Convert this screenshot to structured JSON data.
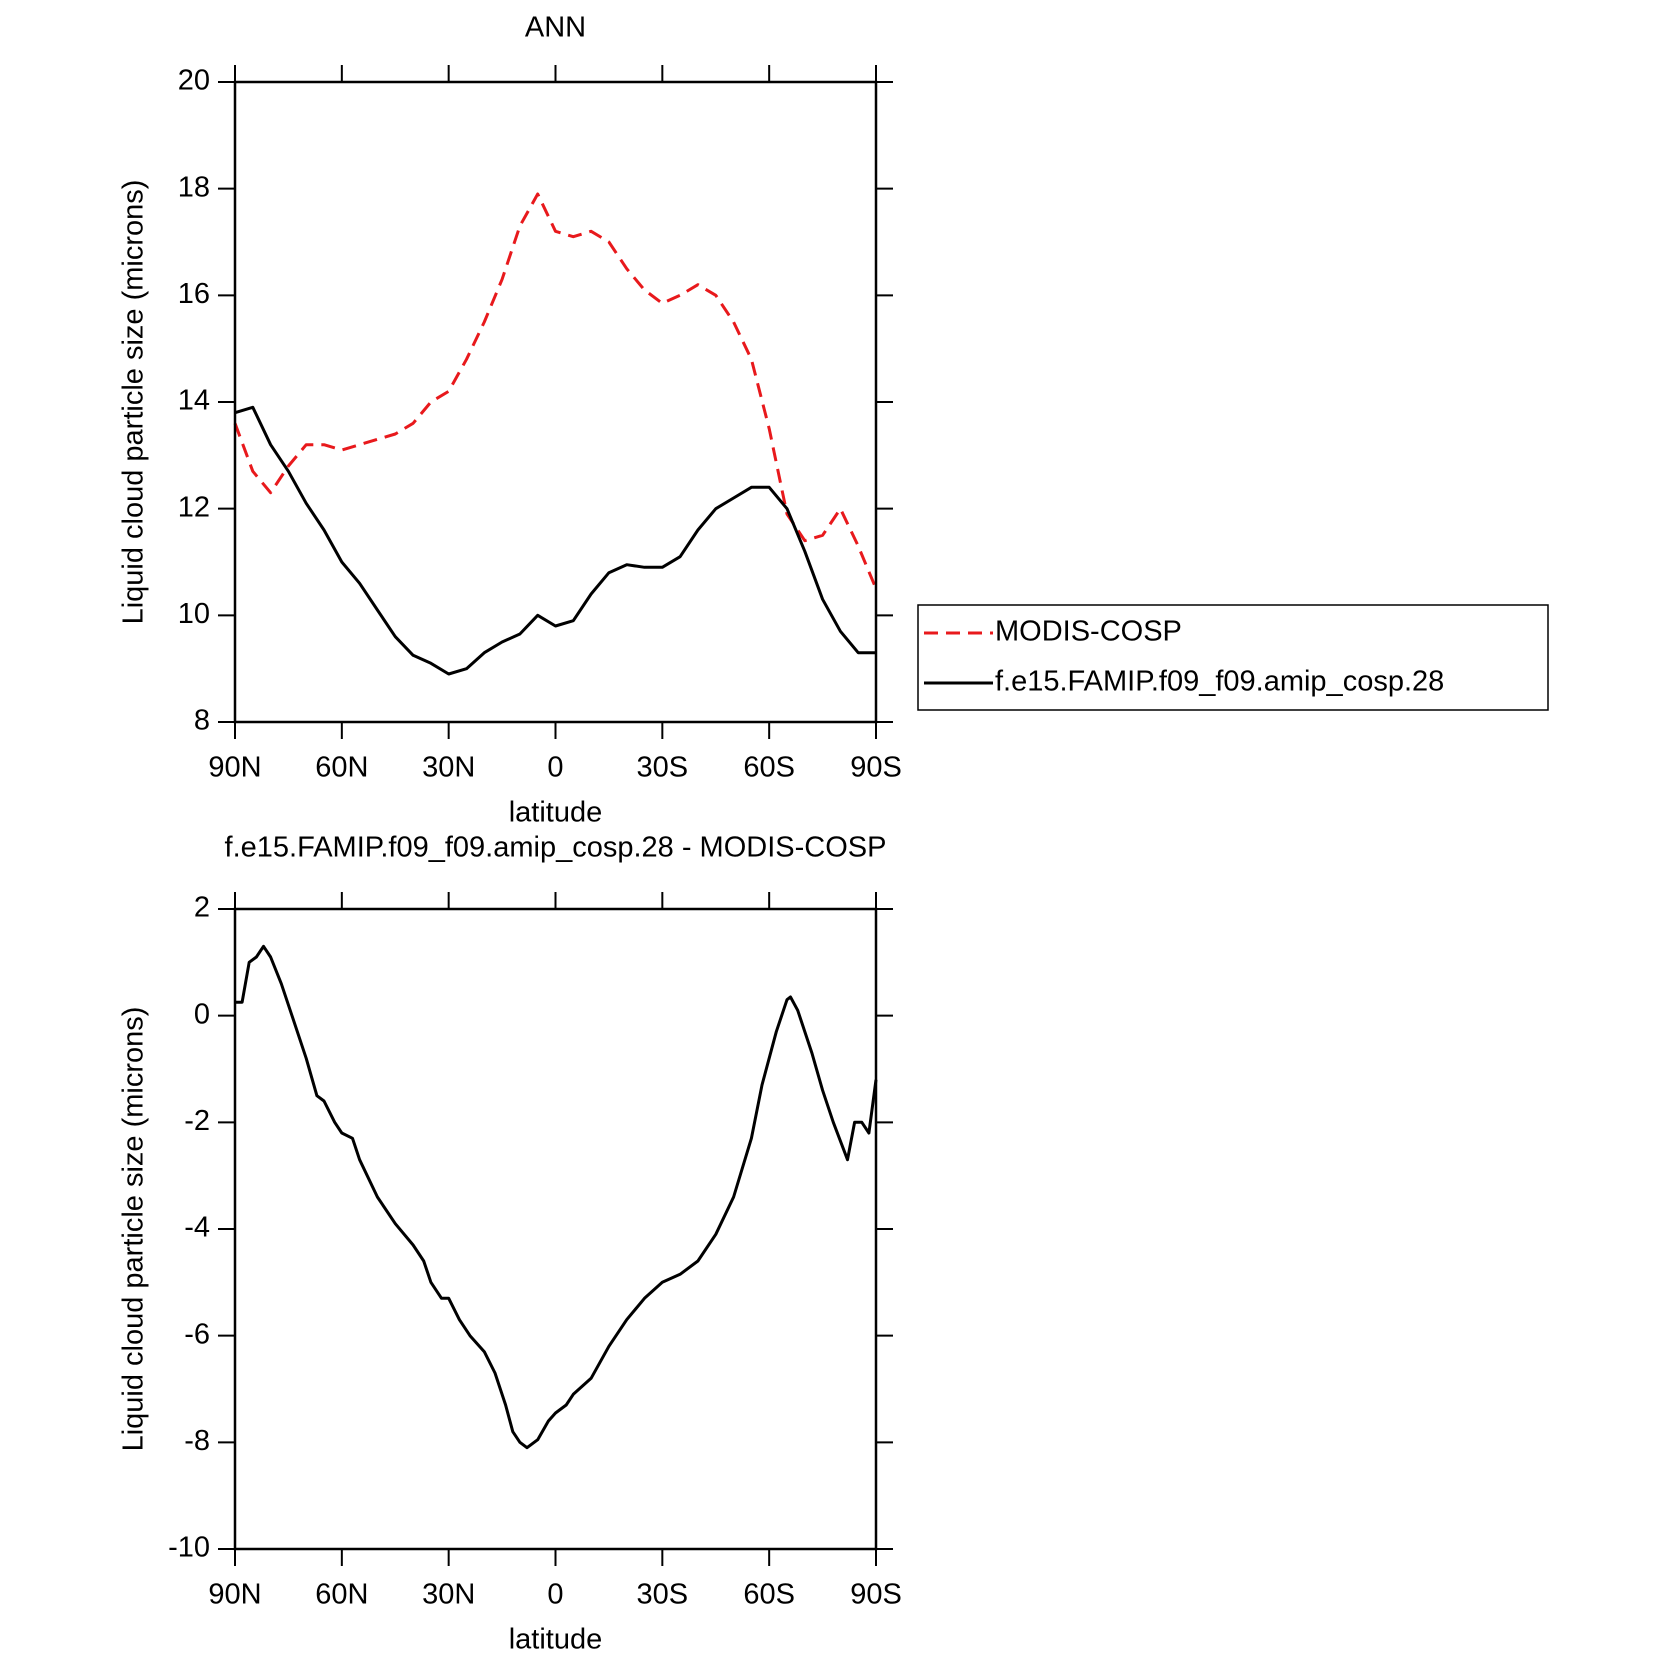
{
  "chart_data": [
    {
      "type": "line",
      "title": "ANN",
      "xlabel": "latitude",
      "ylabel": "Liquid cloud particle size (microns)",
      "x": [
        90,
        85,
        80,
        75,
        70,
        65,
        60,
        55,
        50,
        45,
        40,
        35,
        30,
        25,
        20,
        15,
        10,
        5,
        0,
        -5,
        -10,
        -15,
        -20,
        -25,
        -30,
        -35,
        -40,
        -45,
        -50,
        -55,
        -60,
        -65,
        -70,
        -75,
        -80,
        -85,
        -90
      ],
      "xlim": [
        90,
        -90
      ],
      "xticks": [
        {
          "value": 90,
          "label": "90N"
        },
        {
          "value": 60,
          "label": "60N"
        },
        {
          "value": 30,
          "label": "30N"
        },
        0,
        {
          "value": -30,
          "label": "30S"
        },
        {
          "value": -60,
          "label": "60S"
        },
        {
          "value": -90,
          "label": "90S"
        }
      ],
      "ylim": [
        8,
        20
      ],
      "yticks": [
        8,
        10,
        12,
        14,
        16,
        18,
        20
      ],
      "legend": "right",
      "series": [
        {
          "name": "MODIS-COSP",
          "color": "#e8191c",
          "dashed": true,
          "values": [
            13.6,
            12.7,
            12.3,
            12.8,
            13.2,
            13.2,
            13.1,
            13.2,
            13.3,
            13.4,
            13.6,
            14.0,
            14.2,
            14.8,
            15.5,
            16.3,
            17.3,
            17.9,
            17.2,
            17.1,
            17.2,
            17.0,
            16.5,
            16.1,
            15.85,
            16.0,
            16.2,
            16.0,
            15.5,
            14.8,
            13.5,
            11.9,
            11.4,
            11.5,
            12.0,
            11.3,
            10.5
          ]
        },
        {
          "name": "f.e15.FAMIP.f09_f09.amip_cosp.28",
          "color": "#000000",
          "dashed": false,
          "values": [
            13.8,
            13.9,
            13.2,
            12.7,
            12.1,
            11.6,
            11.0,
            10.6,
            10.1,
            9.6,
            9.25,
            9.1,
            8.9,
            9.0,
            9.3,
            9.5,
            9.65,
            10.0,
            9.8,
            9.9,
            10.4,
            10.8,
            10.95,
            10.9,
            10.9,
            11.1,
            11.6,
            12.0,
            12.2,
            12.4,
            12.4,
            12.0,
            11.2,
            10.3,
            9.7,
            9.3,
            9.3
          ]
        }
      ]
    },
    {
      "type": "line",
      "title": "f.e15.FAMIP.f09_f09.amip_cosp.28 - MODIS-COSP",
      "xlabel": "latitude",
      "ylabel": "Liquid cloud particle size (microns)",
      "x": [
        90,
        88,
        86,
        84,
        82,
        80,
        77,
        74,
        70,
        67,
        65,
        62,
        60,
        57,
        55,
        50,
        45,
        40,
        37,
        35,
        32,
        30,
        27,
        24,
        20,
        17,
        14,
        12,
        10,
        8,
        5,
        2,
        0,
        -3,
        -5,
        -10,
        -15,
        -20,
        -25,
        -30,
        -35,
        -40,
        -45,
        -50,
        -55,
        -58,
        -62,
        -65,
        -66,
        -68,
        -72,
        -75,
        -78,
        -82,
        -84,
        -86,
        -88,
        -90
      ],
      "xlim": [
        90,
        -90
      ],
      "xticks": [
        {
          "value": 90,
          "label": "90N"
        },
        {
          "value": 60,
          "label": "60N"
        },
        {
          "value": 30,
          "label": "30N"
        },
        0,
        {
          "value": -30,
          "label": "30S"
        },
        {
          "value": -60,
          "label": "60S"
        },
        {
          "value": -90,
          "label": "90S"
        }
      ],
      "ylim": [
        -10,
        2
      ],
      "yticks": [
        -10,
        -8,
        -6,
        -4,
        -2,
        0,
        2
      ],
      "series": [
        {
          "color": "#000000",
          "dashed": false,
          "values": [
            0.25,
            0.25,
            1.0,
            1.1,
            1.3,
            1.1,
            0.6,
            0.0,
            -0.8,
            -1.5,
            -1.6,
            -2.0,
            -2.2,
            -2.3,
            -2.7,
            -3.4,
            -3.9,
            -4.3,
            -4.6,
            -5.0,
            -5.3,
            -5.3,
            -5.7,
            -6.0,
            -6.3,
            -6.7,
            -7.3,
            -7.8,
            -8.0,
            -8.1,
            -7.95,
            -7.6,
            -7.45,
            -7.3,
            -7.1,
            -6.8,
            -6.2,
            -5.7,
            -5.3,
            -5.0,
            -4.85,
            -4.6,
            -4.1,
            -3.4,
            -2.3,
            -1.3,
            -0.3,
            0.3,
            0.35,
            0.1,
            -0.7,
            -1.4,
            -2.0,
            -2.7,
            -2.0,
            -2.0,
            -2.2,
            -1.2
          ]
        }
      ]
    }
  ]
}
